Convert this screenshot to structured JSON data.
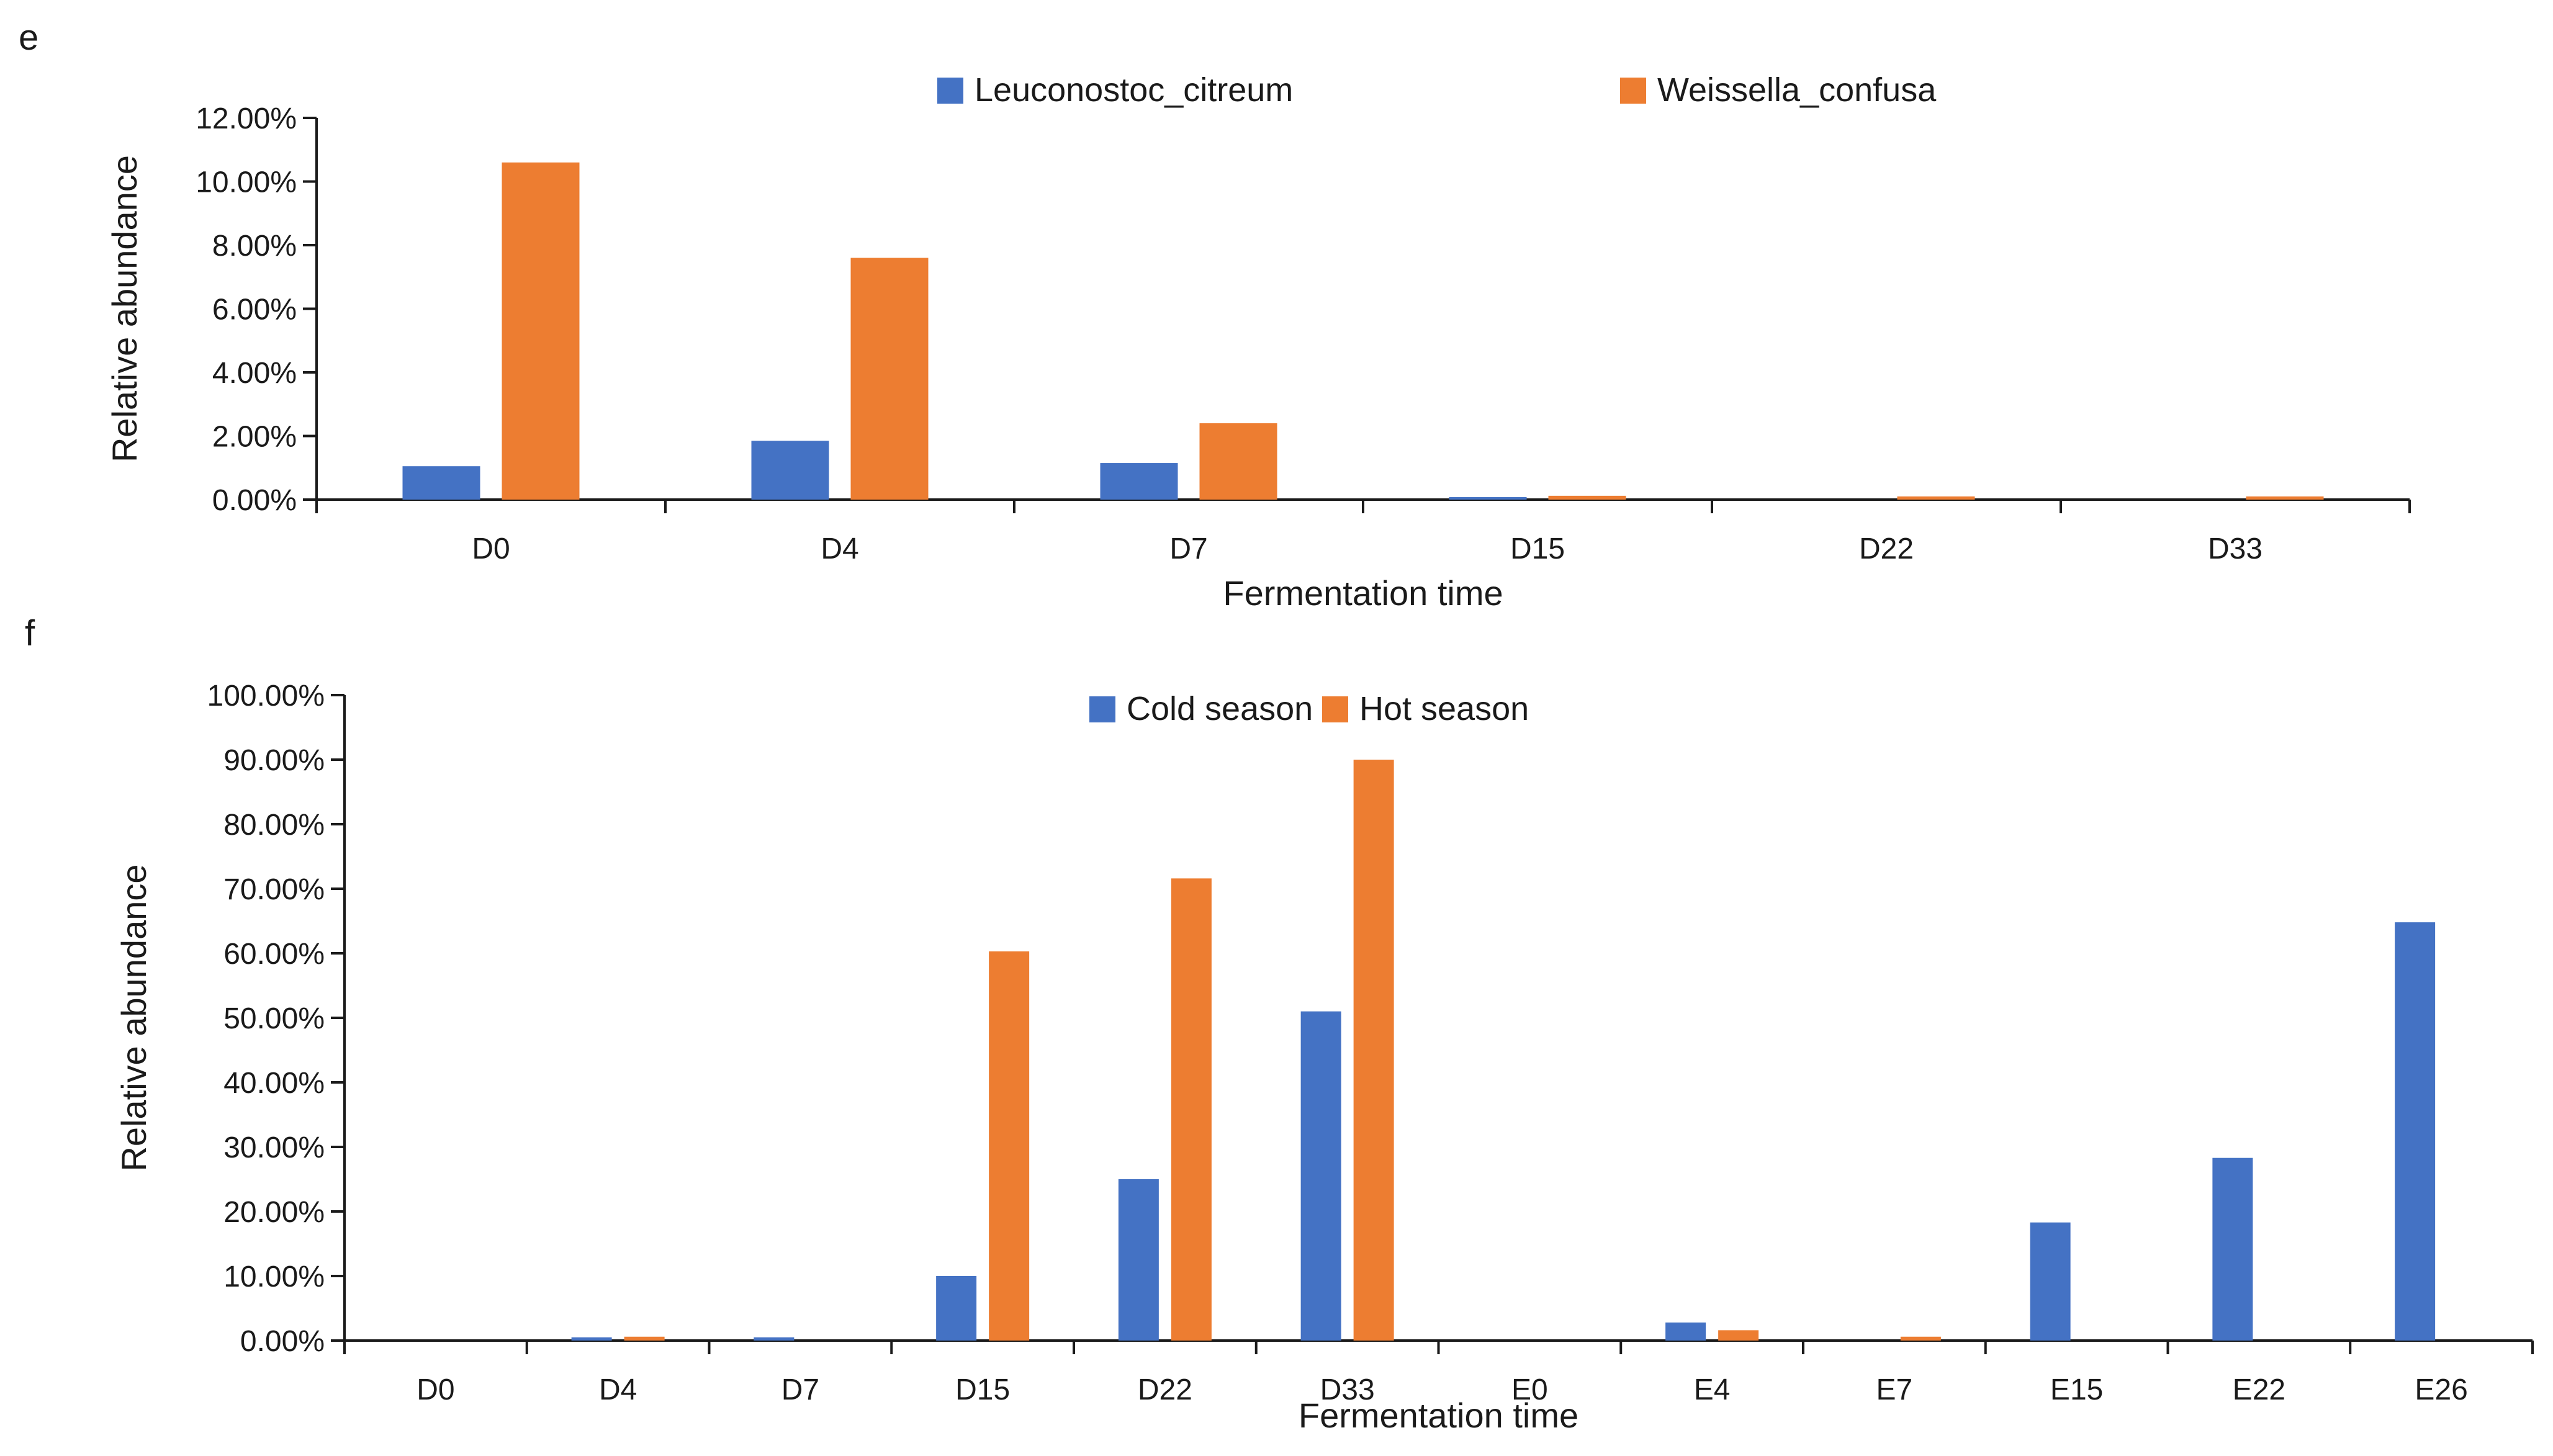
{
  "chart_data": [
    {
      "panel": "e",
      "type": "bar",
      "xlabel": "Fermentation time",
      "ylabel": "Relative abundance",
      "ylim": [
        0,
        12
      ],
      "y_ticks": [
        "0.00%",
        "2.00%",
        "4.00%",
        "6.00%",
        "8.00%",
        "10.00%",
        "12.00%"
      ],
      "categories": [
        "D0",
        "D4",
        "D7",
        "D15",
        "D22",
        "D33"
      ],
      "legend_position": "top",
      "series": [
        {
          "name": "Leuconostoc_citreum",
          "color": "#4472C4",
          "values": [
            1.05,
            1.85,
            1.15,
            0.08,
            0.0,
            0.0
          ]
        },
        {
          "name": "Weissella_confusa",
          "color": "#ED7D31",
          "values": [
            10.6,
            7.6,
            2.4,
            0.12,
            0.1,
            0.1
          ]
        }
      ]
    },
    {
      "panel": "f",
      "type": "bar",
      "xlabel": "Fermentation time",
      "ylabel": "Relative abundance",
      "ylim": [
        0,
        100
      ],
      "y_ticks": [
        "0.00%",
        "10.00%",
        "20.00%",
        "30.00%",
        "40.00%",
        "50.00%",
        "60.00%",
        "70.00%",
        "80.00%",
        "90.00%",
        "100.00%"
      ],
      "categories": [
        "D0",
        "D4",
        "D7",
        "D15",
        "D22",
        "D33",
        "E0",
        "E4",
        "E7",
        "E15",
        "E22",
        "E26"
      ],
      "legend_position": "top",
      "series": [
        {
          "name": "Cold season",
          "color": "#4472C4",
          "values": [
            0.0,
            0.5,
            0.5,
            10.0,
            25.0,
            51.0,
            0.0,
            2.8,
            0.0,
            18.3,
            28.3,
            64.8
          ]
        },
        {
          "name": "Hot season",
          "color": "#ED7D31",
          "values": [
            0.0,
            0.6,
            0.0,
            60.3,
            71.6,
            90.0,
            0.0,
            1.6,
            0.6,
            0.0,
            0.0,
            0.0
          ]
        }
      ]
    }
  ]
}
